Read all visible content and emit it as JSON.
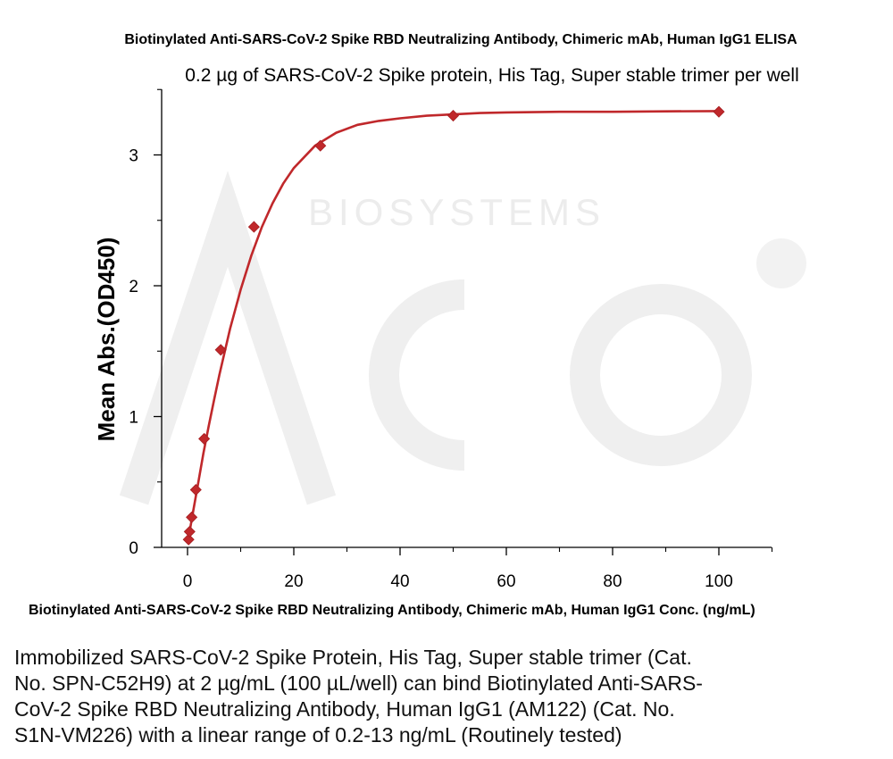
{
  "chart_data": {
    "type": "scatter",
    "title": "Biotinylated Anti-SARS-CoV-2 Spike RBD Neutralizing Antibody, Chimeric mAb, Human IgG1 ELISA",
    "subtitle": "0.2 µg of SARS-CoV-2 Spike protein, His Tag, Super stable trimer per well",
    "xlabel": "Biotinylated Anti-SARS-CoV-2 Spike RBD Neutralizing Antibody, Chimeric mAb, Human IgG1 Conc. (ng/mL)",
    "ylabel": "Mean Abs.(OD450)",
    "xlim": [
      -5,
      110
    ],
    "ylim": [
      -0.05,
      3.5
    ],
    "xticks": [
      0,
      20,
      40,
      60,
      80,
      100
    ],
    "yticks": [
      0,
      1,
      2,
      3
    ],
    "grid": false,
    "legend": "none",
    "series": [
      {
        "color": "#c0282b",
        "marker": "diamond",
        "x": [
          0.2,
          0.39,
          0.78,
          1.56,
          3.13,
          6.25,
          12.5,
          25,
          50,
          100
        ],
        "y": [
          0.06,
          0.12,
          0.23,
          0.44,
          0.83,
          1.51,
          2.45,
          3.07,
          3.3,
          3.33
        ]
      }
    ],
    "fit_curve": {
      "color": "#c0282b",
      "x": [
        0,
        1,
        2,
        3,
        4,
        5,
        6,
        8,
        10,
        12,
        14,
        16,
        18,
        20,
        24,
        28,
        32,
        36,
        40,
        45,
        50,
        55,
        60,
        70,
        80,
        90,
        100
      ],
      "y": [
        0.03,
        0.26,
        0.49,
        0.72,
        0.93,
        1.13,
        1.32,
        1.67,
        1.97,
        2.23,
        2.45,
        2.63,
        2.78,
        2.9,
        3.07,
        3.17,
        3.23,
        3.26,
        3.28,
        3.3,
        3.31,
        3.32,
        3.325,
        3.33,
        3.33,
        3.333,
        3.335
      ]
    }
  },
  "watermark": {
    "text": "BIOSYSTEMS",
    "color": "#ececec"
  },
  "caption": "Immobilized SARS-CoV-2 Spike Protein, His Tag, Super stable trimer (Cat.\nNo. SPN-C52H9) at 2 µg/mL (100 µL/well) can bind Biotinylated Anti-SARS-\nCoV-2 Spike RBD Neutralizing Antibody, Human IgG1 (AM122) (Cat. No.\nS1N-VM226) with a linear range of 0.2-13 ng/mL (Routinely  tested)"
}
